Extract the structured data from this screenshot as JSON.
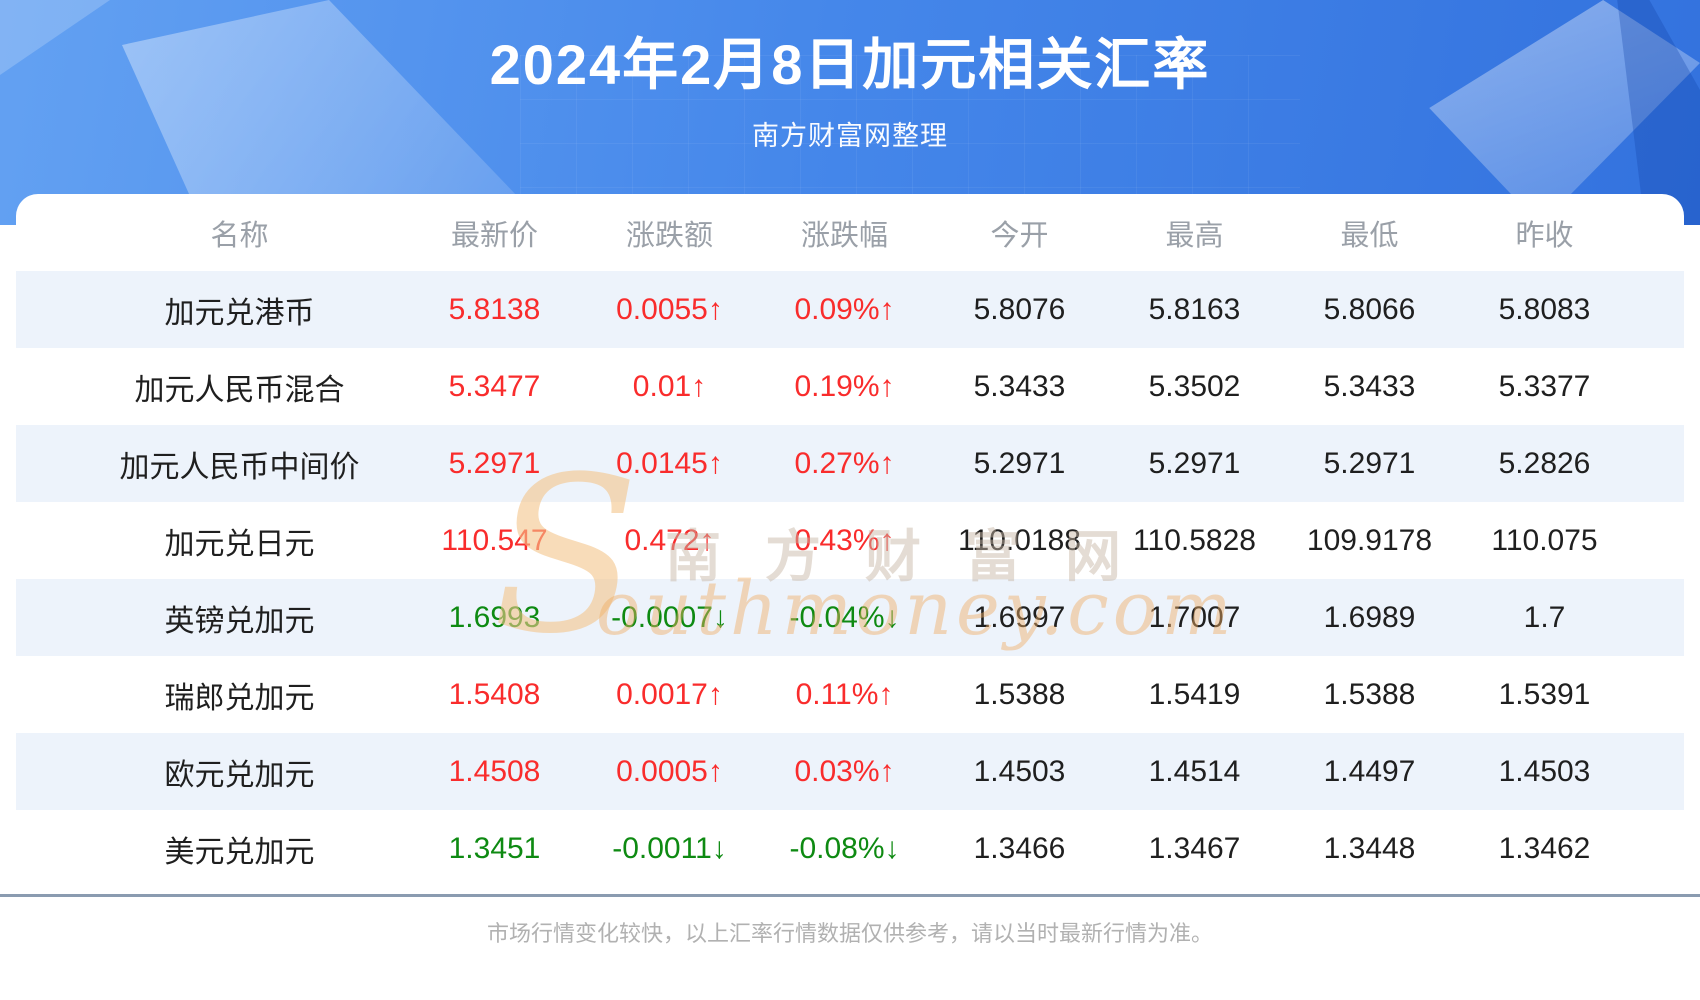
{
  "header": {
    "title": "2024年2月8日加元相关汇率",
    "subtitle": "南方财富网整理"
  },
  "table": {
    "columns": [
      "名称",
      "最新价",
      "涨跌额",
      "涨跌幅",
      "今开",
      "最高",
      "最低",
      "昨收"
    ],
    "rows": [
      {
        "name": "加元兑港币",
        "latest": "5.8138",
        "change": "0.0055↑",
        "change_pct": "0.09%↑",
        "open": "5.8076",
        "high": "5.8163",
        "low": "5.8066",
        "prev_close": "5.8083",
        "trend": "up"
      },
      {
        "name": "加元人民币混合",
        "latest": "5.3477",
        "change": "0.01↑",
        "change_pct": "0.19%↑",
        "open": "5.3433",
        "high": "5.3502",
        "low": "5.3433",
        "prev_close": "5.3377",
        "trend": "up"
      },
      {
        "name": "加元人民币中间价",
        "latest": "5.2971",
        "change": "0.0145↑",
        "change_pct": "0.27%↑",
        "open": "5.2971",
        "high": "5.2971",
        "low": "5.2971",
        "prev_close": "5.2826",
        "trend": "up"
      },
      {
        "name": "加元兑日元",
        "latest": "110.547",
        "change": "0.472↑",
        "change_pct": "0.43%↑",
        "open": "110.0188",
        "high": "110.5828",
        "low": "109.9178",
        "prev_close": "110.075",
        "trend": "up"
      },
      {
        "name": "英镑兑加元",
        "latest": "1.6993",
        "change": "-0.0007↓",
        "change_pct": "-0.04%↓",
        "open": "1.6997",
        "high": "1.7007",
        "low": "1.6989",
        "prev_close": "1.7",
        "trend": "down"
      },
      {
        "name": "瑞郎兑加元",
        "latest": "1.5408",
        "change": "0.0017↑",
        "change_pct": "0.11%↑",
        "open": "1.5388",
        "high": "1.5419",
        "low": "1.5388",
        "prev_close": "1.5391",
        "trend": "up"
      },
      {
        "name": "欧元兑加元",
        "latest": "1.4508",
        "change": "0.0005↑",
        "change_pct": "0.03%↑",
        "open": "1.4503",
        "high": "1.4514",
        "low": "1.4497",
        "prev_close": "1.4503",
        "trend": "up"
      },
      {
        "name": "美元兑加元",
        "latest": "1.3451",
        "change": "-0.0011↓",
        "change_pct": "-0.08%↓",
        "open": "1.3466",
        "high": "1.3467",
        "low": "1.3448",
        "prev_close": "1.3462",
        "trend": "down"
      }
    ]
  },
  "watermark": {
    "s": "S",
    "cjk": "南方财富网",
    "latin": "outhmoney.com"
  },
  "footer": {
    "disclaimer": "市场行情变化较快，以上汇率行情数据仅供参考，请以当时最新行情为准。"
  },
  "colors": {
    "up": "#f92c2c",
    "down": "#0e8a12",
    "banner_left": "#63a1f2",
    "banner_right": "#3372de",
    "row_alt": "#edf3fb",
    "divider": "#8a9bb0",
    "header_text": "#9aa0a8",
    "disclaimer_text": "#b1b1b1"
  }
}
